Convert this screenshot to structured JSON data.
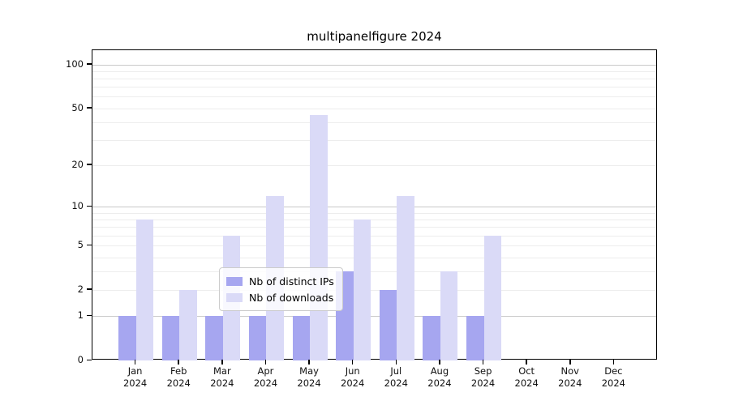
{
  "chart_data": {
    "type": "bar",
    "title": "multipanelfigure 2024",
    "categories": [
      "Jan",
      "Feb",
      "Mar",
      "Apr",
      "May",
      "Jun",
      "Jul",
      "Aug",
      "Sep",
      "Oct",
      "Nov",
      "Dec"
    ],
    "year_label": "2024",
    "series": [
      {
        "name": "Nb of distinct IPs",
        "color": "#a6a6f0",
        "values": [
          1,
          1,
          1,
          1,
          1,
          3,
          2,
          1,
          1,
          0,
          0,
          0
        ]
      },
      {
        "name": "Nb of downloads",
        "color": "#dadaf7",
        "values": [
          8,
          2,
          6,
          12,
          45,
          8,
          12,
          3,
          6,
          0,
          0,
          0
        ]
      }
    ],
    "yscale": "log1p",
    "ylim": [
      0,
      125
    ],
    "yticks": [
      0,
      1,
      2,
      5,
      10,
      20,
      50,
      100
    ],
    "ytick_labels": [
      "0",
      "1",
      "2",
      "5",
      "10",
      "20",
      "50",
      "100"
    ],
    "gridlines_major": [
      1,
      10,
      100
    ],
    "gridlines_minor": [
      2,
      3,
      4,
      5,
      6,
      7,
      8,
      9,
      20,
      30,
      40,
      50,
      60,
      70,
      80,
      90
    ],
    "grid": "on",
    "legend_position": "lower center inside plot",
    "xlabel": "",
    "ylabel": ""
  },
  "legend": {
    "items": [
      {
        "label": "Nb of distinct IPs",
        "color": "#a6a6f0"
      },
      {
        "label": "Nb of downloads",
        "color": "#dadaf7"
      }
    ]
  }
}
